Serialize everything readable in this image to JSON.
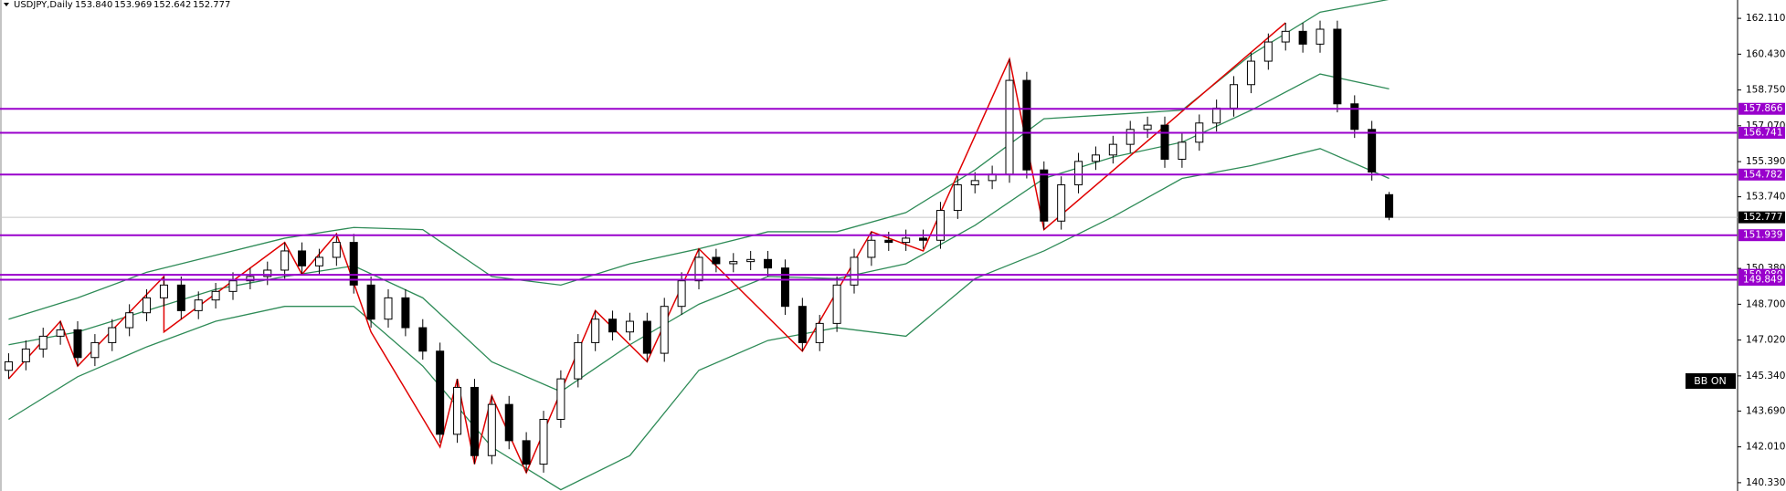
{
  "chart_data": {
    "type": "candlestick",
    "symbol": "USDJPY,Daily",
    "header_ohlc": [
      "153.840",
      "153.969",
      "152.642",
      "152.777"
    ],
    "button": "BB ON",
    "xlim": [
      -0.5,
      80.5
    ],
    "ylim": [
      139.94,
      162.97
    ],
    "yticks": [
      {
        "value": 162.11,
        "label": "162.110"
      },
      {
        "value": 160.43,
        "label": "160.430"
      },
      {
        "value": 158.75,
        "label": "158.750"
      },
      {
        "value": 157.07,
        "label": "157.070"
      },
      {
        "value": 155.39,
        "label": "155.390"
      },
      {
        "value": 153.74,
        "label": "153.740"
      },
      {
        "value": 150.38,
        "label": "150.380"
      },
      {
        "value": 148.7,
        "label": "148.700"
      },
      {
        "value": 147.02,
        "label": "147.020"
      },
      {
        "value": 145.34,
        "label": "145.340"
      },
      {
        "value": 143.69,
        "label": "143.690"
      },
      {
        "value": 142.01,
        "label": "142.010"
      },
      {
        "value": 140.33,
        "label": "140.330"
      }
    ],
    "last_price": 152.777,
    "up_color": "#ffffff",
    "down_color": "#000000",
    "level_color": "#9900cc",
    "levels": [
      157.866,
      156.741,
      154.782,
      151.939,
      {
        "value": 150.08,
        "label": "150.080"
      },
      149.849
    ],
    "open": [
      145.6,
      146.0,
      146.6,
      147.2,
      147.5,
      146.2,
      146.9,
      147.6,
      148.3,
      149.0,
      149.6,
      148.4,
      148.9,
      149.3,
      149.8,
      150.0,
      150.3,
      151.2,
      150.5,
      150.9,
      151.6,
      149.6,
      148.0,
      149.0,
      147.6,
      146.5,
      142.6,
      144.8,
      141.6,
      144.0,
      142.3,
      141.2,
      143.3,
      145.2,
      146.9,
      148.0,
      147.4,
      147.9,
      146.4,
      148.6,
      149.8,
      150.9,
      150.6,
      150.7,
      150.8,
      150.4,
      148.6,
      146.9,
      147.8,
      149.6,
      150.9,
      151.7,
      151.6,
      151.8,
      151.7,
      153.1,
      154.3,
      154.5,
      154.8,
      159.2,
      155.0,
      152.6,
      154.3,
      155.4,
      155.7,
      156.2,
      156.9,
      157.1,
      155.5,
      156.3,
      157.2,
      157.9,
      159.0,
      160.1,
      161.0,
      161.5,
      160.9,
      161.6,
      158.1,
      156.9,
      153.84
    ],
    "high": [
      146.4,
      147.0,
      147.6,
      147.9,
      147.9,
      147.3,
      148.0,
      148.7,
      149.4,
      150.0,
      150.0,
      149.3,
      149.7,
      150.2,
      150.4,
      150.7,
      151.6,
      151.6,
      151.3,
      152.0,
      152.0,
      150.0,
      149.4,
      149.4,
      148.0,
      146.9,
      145.2,
      145.2,
      144.4,
      144.4,
      142.7,
      143.7,
      145.6,
      147.3,
      148.4,
      148.4,
      148.3,
      148.3,
      149.0,
      150.2,
      151.3,
      151.3,
      151.1,
      151.2,
      151.2,
      150.8,
      149.0,
      148.2,
      150.0,
      151.3,
      152.1,
      152.1,
      152.2,
      152.2,
      153.5,
      154.7,
      154.9,
      155.2,
      160.2,
      159.6,
      155.4,
      154.7,
      155.8,
      156.1,
      156.6,
      157.3,
      157.5,
      157.5,
      156.7,
      157.6,
      158.3,
      159.4,
      160.5,
      161.4,
      161.9,
      161.9,
      162.0,
      162.0,
      158.5,
      157.3,
      153.969
    ],
    "low": [
      145.2,
      145.6,
      146.2,
      146.8,
      145.8,
      145.8,
      146.5,
      147.2,
      147.9,
      148.6,
      148.0,
      148.0,
      148.5,
      148.9,
      149.4,
      149.6,
      149.9,
      150.1,
      150.1,
      150.5,
      149.2,
      147.6,
      147.6,
      147.2,
      146.1,
      142.2,
      142.2,
      141.2,
      141.2,
      141.9,
      140.8,
      140.8,
      142.9,
      144.8,
      146.5,
      147.0,
      147.0,
      146.0,
      146.0,
      148.2,
      149.4,
      150.2,
      150.2,
      150.3,
      150.0,
      148.2,
      146.5,
      146.5,
      147.4,
      149.2,
      150.5,
      151.2,
      151.2,
      151.3,
      151.3,
      152.7,
      153.9,
      154.1,
      154.4,
      154.6,
      152.2,
      152.2,
      153.9,
      155.0,
      155.3,
      155.8,
      156.5,
      155.1,
      155.1,
      155.9,
      156.8,
      157.5,
      158.6,
      159.7,
      160.6,
      160.5,
      160.5,
      157.7,
      156.5,
      154.5,
      152.642
    ],
    "close": [
      146.0,
      146.6,
      147.2,
      147.5,
      146.2,
      146.9,
      147.6,
      148.3,
      149.0,
      149.6,
      148.4,
      148.9,
      149.3,
      149.8,
      150.0,
      150.3,
      151.2,
      150.5,
      150.9,
      151.6,
      149.6,
      148.0,
      149.0,
      147.6,
      146.5,
      142.6,
      144.8,
      141.6,
      144.0,
      142.3,
      141.2,
      143.3,
      145.2,
      146.9,
      148.0,
      147.4,
      147.9,
      146.4,
      148.6,
      149.8,
      150.9,
      150.6,
      150.7,
      150.8,
      150.4,
      148.6,
      146.9,
      147.8,
      149.6,
      150.9,
      151.7,
      151.6,
      151.8,
      151.7,
      153.1,
      154.3,
      154.5,
      154.8,
      159.2,
      155.0,
      152.6,
      154.3,
      155.4,
      155.7,
      156.2,
      156.9,
      157.1,
      155.5,
      156.3,
      157.2,
      157.9,
      159.0,
      160.1,
      161.0,
      161.5,
      160.9,
      161.6,
      158.1,
      156.9,
      154.9,
      152.777
    ],
    "bands": {
      "color": "#2e8b57",
      "x": [
        0,
        4,
        8,
        12,
        16,
        20,
        24,
        28,
        32,
        36,
        40,
        44,
        48,
        52,
        56,
        60,
        64,
        68,
        72,
        76,
        80
      ],
      "upper": [
        148.0,
        149.0,
        150.2,
        151.0,
        151.8,
        152.3,
        152.2,
        150.0,
        149.6,
        150.6,
        151.3,
        152.1,
        152.1,
        153.0,
        155.0,
        157.4,
        157.6,
        157.8,
        160.4,
        162.4,
        163.0
      ],
      "middle": [
        146.8,
        147.4,
        148.4,
        149.4,
        150.0,
        150.5,
        149.0,
        146.0,
        144.6,
        146.8,
        148.7,
        150.0,
        149.9,
        150.6,
        152.4,
        154.6,
        155.6,
        156.3,
        157.8,
        159.5,
        158.8
      ],
      "lower": [
        143.3,
        145.3,
        146.7,
        147.9,
        148.6,
        148.6,
        145.8,
        142.0,
        140.0,
        141.6,
        145.6,
        147.0,
        147.6,
        147.2,
        149.9,
        151.2,
        152.8,
        154.6,
        155.2,
        156.0,
        154.6
      ]
    },
    "zigzag": {
      "color": "#e00000",
      "x": [
        0,
        3,
        4,
        9,
        9,
        16,
        17,
        19,
        21,
        25,
        26,
        27,
        28,
        30,
        34,
        37,
        40,
        46,
        50,
        53,
        58,
        60,
        74
      ],
      "values": [
        145.2,
        147.9,
        145.8,
        150.0,
        147.4,
        151.6,
        150.1,
        152.0,
        147.4,
        142.0,
        145.2,
        141.2,
        144.4,
        140.8,
        148.4,
        146.0,
        151.3,
        146.5,
        152.1,
        151.2,
        160.2,
        152.2,
        161.9
      ]
    }
  }
}
